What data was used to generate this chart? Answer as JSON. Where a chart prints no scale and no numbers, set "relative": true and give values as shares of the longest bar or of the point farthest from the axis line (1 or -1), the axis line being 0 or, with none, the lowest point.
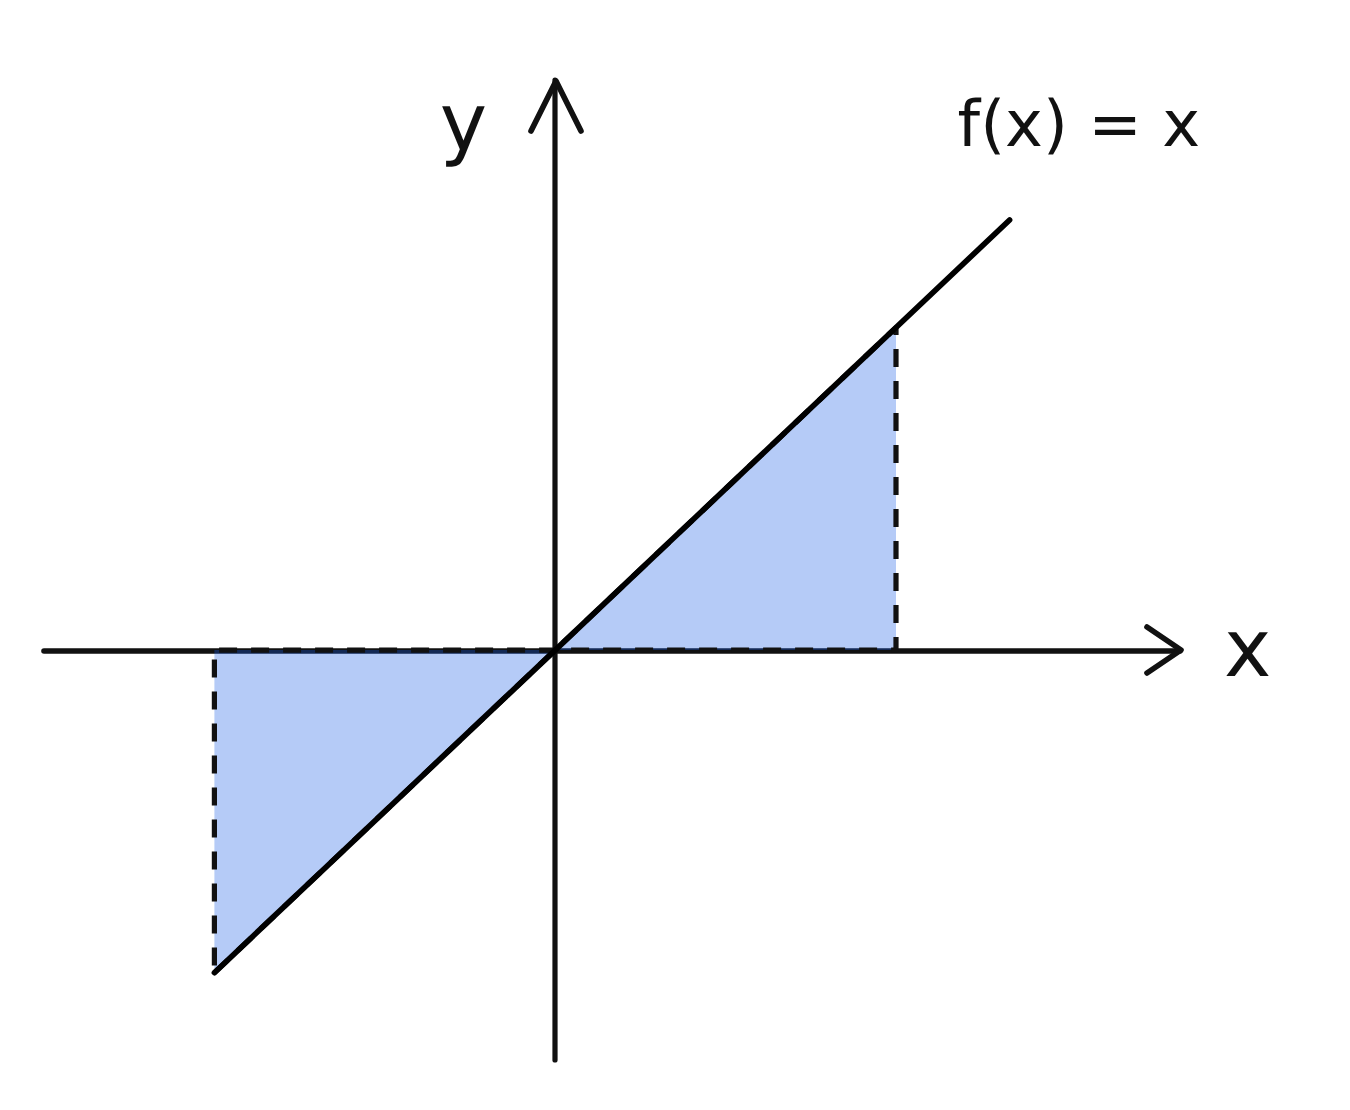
{
  "chart_data": {
    "type": "line",
    "relative": true,
    "xlabel": "x",
    "ylabel": "y",
    "legend": false,
    "grid": false,
    "marker": "none",
    "categories": [
      null,
      null,
      null,
      null,
      null,
      null,
      null,
      null,
      null,
      null
    ],
    "series": [
      {
        "type": "area",
        "color": "#1a5ce6",
        "line_style": "dashed",
        "values": [
          null,
          -0.75,
          -0.5,
          -0.25,
          0,
          0.25,
          0.5,
          0.75,
          null,
          null
        ]
      },
      {
        "name": "f(x) = x",
        "color": "#000000",
        "values": [
          null,
          -0.75,
          -0.5,
          -0.25,
          0,
          0.25,
          0.5,
          0.75,
          1,
          null
        ]
      }
    ]
  }
}
